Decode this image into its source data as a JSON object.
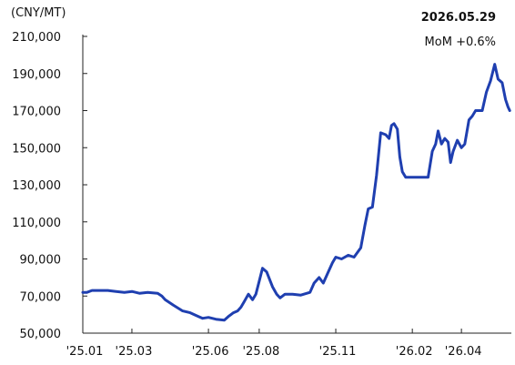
{
  "chart_data": {
    "type": "line",
    "unit": "(CNY/MT)",
    "annotation": {
      "date": "2026.05.29",
      "change": "MoM +0.6%"
    },
    "ylim": [
      50000,
      210000
    ],
    "yticks": [
      50000,
      70000,
      90000,
      110000,
      130000,
      150000,
      170000,
      190000,
      210000
    ],
    "ytick_labels": [
      "50,000",
      "70,000",
      "90,000",
      "110,000",
      "130,000",
      "150,000",
      "170,000",
      "190,000",
      "210,000"
    ],
    "xlim": [
      "2025-01-01",
      "2026-05-31"
    ],
    "xticks": [
      {
        "date": "2025-01-01",
        "label": "'25.01"
      },
      {
        "date": "2025-03-01",
        "label": "'25.03"
      },
      {
        "date": "2025-06-01",
        "label": "'25.06"
      },
      {
        "date": "2025-08-01",
        "label": "'25.08"
      },
      {
        "date": "2025-11-01",
        "label": "'25.11"
      },
      {
        "date": "2026-02-01",
        "label": "'26.02"
      },
      {
        "date": "2026-04-01",
        "label": "'26.04"
      }
    ],
    "grid": false,
    "line_color": "#1f3fb0",
    "series": [
      {
        "x": [
          "2025-01-01",
          "2025-01-06",
          "2025-01-12",
          "2025-01-16",
          "2025-01-20",
          "2025-01-31",
          "2025-02-10",
          "2025-02-20",
          "2025-03-01",
          "2025-03-10",
          "2025-03-20",
          "2025-04-01",
          "2025-04-06",
          "2025-04-10",
          "2025-04-20",
          "2025-05-01",
          "2025-05-10",
          "2025-05-20",
          "2025-05-25",
          "2025-06-01",
          "2025-06-10",
          "2025-06-20",
          "2025-06-25",
          "2025-07-01",
          "2025-07-06",
          "2025-07-10",
          "2025-07-14",
          "2025-07-19",
          "2025-07-24",
          "2025-07-28",
          "2025-08-01",
          "2025-08-05",
          "2025-08-10",
          "2025-08-17",
          "2025-08-22",
          "2025-08-26",
          "2025-09-01",
          "2025-09-10",
          "2025-09-20",
          "2025-10-01",
          "2025-10-06",
          "2025-10-12",
          "2025-10-17",
          "2025-10-22",
          "2025-10-28",
          "2025-11-01",
          "2025-11-08",
          "2025-11-16",
          "2025-11-23",
          "2025-12-01",
          "2025-12-06",
          "2025-12-10",
          "2025-12-15",
          "2025-12-20",
          "2025-12-25",
          "2025-12-31",
          "2026-01-04",
          "2026-01-07",
          "2026-01-10",
          "2026-01-14",
          "2026-01-17",
          "2026-01-20",
          "2026-01-24",
          "2026-01-28",
          "2026-02-01",
          "2026-02-10",
          "2026-02-20",
          "2026-02-25",
          "2026-03-01",
          "2026-03-04",
          "2026-03-08",
          "2026-03-12",
          "2026-03-16",
          "2026-03-19",
          "2026-03-22",
          "2026-03-27",
          "2026-04-01",
          "2026-04-05",
          "2026-04-10",
          "2026-04-14",
          "2026-04-18",
          "2026-04-22",
          "2026-04-26",
          "2026-05-01",
          "2026-05-06",
          "2026-05-11",
          "2026-05-15",
          "2026-05-20",
          "2026-05-24",
          "2026-05-27",
          "2026-05-29"
        ],
        "y": [
          72000,
          72000,
          73000,
          73000,
          73000,
          73000,
          72500,
          72000,
          72500,
          71500,
          72000,
          71500,
          70000,
          68000,
          65000,
          62000,
          61000,
          59000,
          58000,
          58500,
          57500,
          57000,
          59000,
          61000,
          62000,
          64000,
          67000,
          71000,
          68000,
          71000,
          78000,
          85000,
          83000,
          75000,
          71000,
          69000,
          71000,
          71000,
          70500,
          72000,
          77000,
          80000,
          77000,
          82000,
          88000,
          91000,
          90000,
          92000,
          91000,
          96000,
          108000,
          117000,
          118000,
          135000,
          158000,
          157000,
          155000,
          162000,
          163000,
          160000,
          145000,
          137000,
          134000,
          134000,
          134000,
          134000,
          134000,
          148000,
          152000,
          159000,
          152000,
          155000,
          153000,
          142000,
          148000,
          154000,
          150000,
          152000,
          165000,
          167000,
          170000,
          170000,
          170000,
          180000,
          186000,
          195000,
          187000,
          185000,
          176000,
          172000,
          170000
        ]
      }
    ]
  }
}
